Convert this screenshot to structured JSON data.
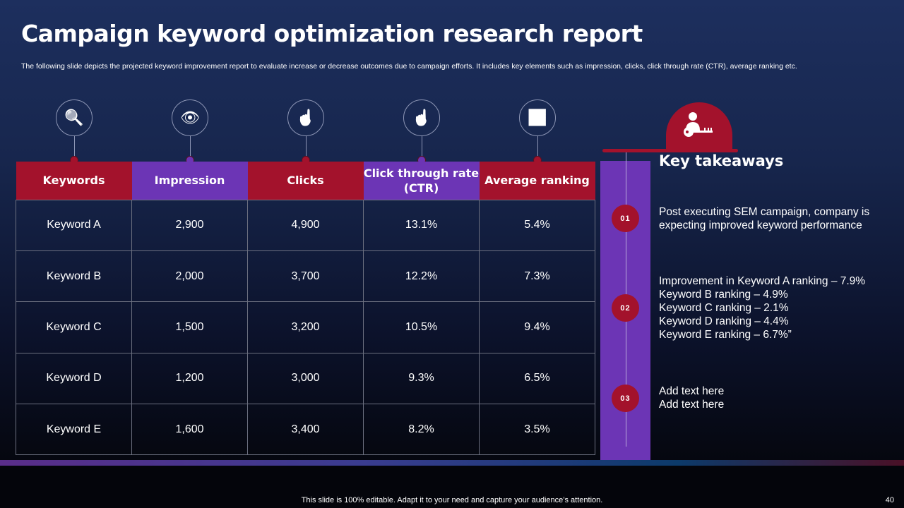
{
  "title": "Campaign keyword optimization research report",
  "description": "The following slide depicts the projected keyword improvement report to evaluate increase or decrease outcomes due to campaign efforts. It includes key elements such as impression, clicks, click through rate (CTR), average ranking etc.",
  "colors": {
    "red": "#a3122c",
    "purple": "#6c35b5"
  },
  "icons": [
    "keyword-search-icon",
    "eye-icon",
    "tap-hand-icon",
    "pointer-hand-icon",
    "growth-chart-icon"
  ],
  "table": {
    "headers": [
      "Keywords",
      "Impression",
      "Clicks",
      "Click through rate (CTR)",
      "Average ranking"
    ],
    "rows": [
      [
        "Keyword A",
        "2,900",
        "4,900",
        "13.1%",
        "5.4%"
      ],
      [
        "Keyword B",
        "2,000",
        "3,700",
        "12.2%",
        "7.3%"
      ],
      [
        "Keyword C",
        "1,500",
        "3,200",
        "10.5%",
        "9.4%"
      ],
      [
        "Keyword D",
        "1,200",
        "3,000",
        "9.3%",
        "6.5%"
      ],
      [
        "Keyword E",
        "1,600",
        "3,400",
        "8.2%",
        "3.5%"
      ]
    ]
  },
  "takeaways": {
    "title": "Key takeaways",
    "icon": "user-key-icon",
    "items": [
      {
        "num": "01",
        "lines": [
          "Post executing  SEM campaign, company is",
          "expecting improved keyword performance"
        ]
      },
      {
        "num": "02",
        "lines": [
          "Improvement  in Keyword A ranking – 7.9%",
          "Keyword B ranking – 4.9%",
          "Keyword C ranking – 2.1%",
          "Keyword D ranking – 4.4%",
          "Keyword E ranking – 6.7%”"
        ]
      },
      {
        "num": "03",
        "lines": [
          "Add text here",
          "Add text here"
        ]
      }
    ]
  },
  "footer": "This slide is 100% editable. Adapt it to your need and capture your audience’s attention.",
  "page_number": "40"
}
